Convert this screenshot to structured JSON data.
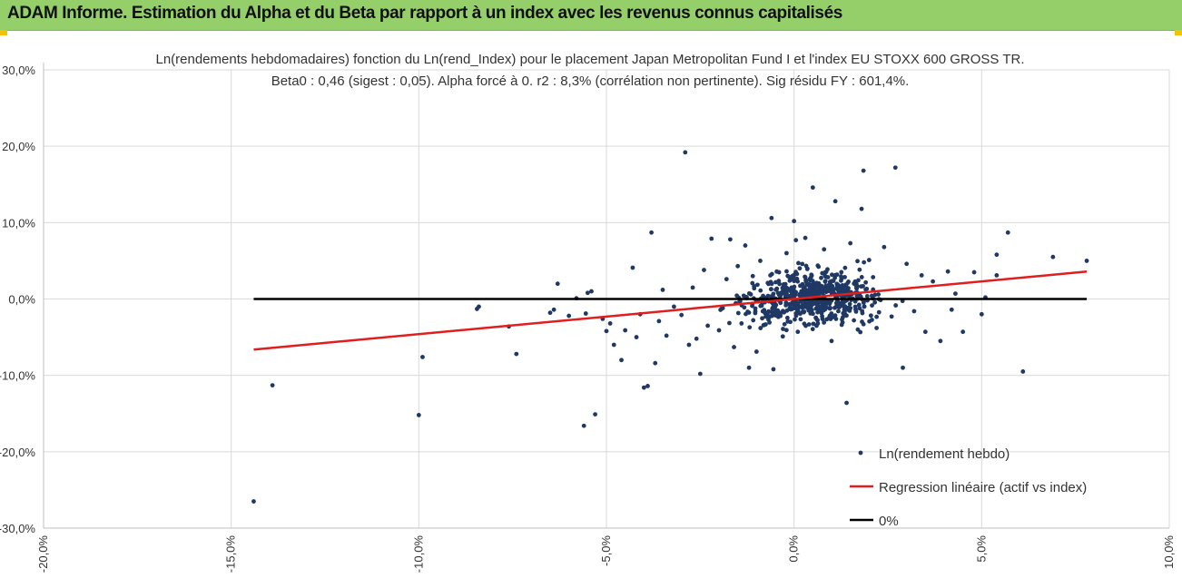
{
  "header": {
    "title": "ADAM Informe. Estimation du Alpha et du Beta par rapport à un index avec les revenus connus capitalisés"
  },
  "colors": {
    "header_bg": "#94cf6a",
    "points": "#1f3864",
    "regression": "#e01e1e",
    "zero": "#000000",
    "corner": "#f2c300"
  },
  "chart_data": {
    "type": "scatter",
    "title_line1": "Ln(rendements hebdomadaires) fonction du Ln(rend_Index) pour le placement Japan Metropolitan Fund I et l'index EU STOXX 600 GROSS TR.",
    "title_line2": "Beta0 : 0,46  (sigest : 0,05).  Alpha forcé à 0. r2 : 8,3% (corrélation non pertinente). Sig résidu FY : 601,4%.",
    "xlabel": "",
    "ylabel": "",
    "xlim": [
      -20,
      10
    ],
    "ylim": [
      -30,
      30
    ],
    "x_ticks": [
      "-20,0%",
      "-15,0%",
      "-10,0%",
      "-5,0%",
      "0,0%",
      "5,0%",
      "10,0%"
    ],
    "x_tick_values": [
      -20,
      -15,
      -10,
      -5,
      0,
      5,
      10
    ],
    "y_ticks": [
      "30,0%",
      "20,0%",
      "10,0%",
      "0,0%",
      "-10,0%",
      "-20,0%",
      "-30,0%"
    ],
    "y_tick_values": [
      30,
      20,
      10,
      0,
      -10,
      -20,
      -30
    ],
    "grid": true,
    "legend_position": "bottom-right",
    "legend": [
      "Ln(rendement hebdo)",
      "Regression linéaire (actif vs index)",
      "0%"
    ],
    "regression": {
      "slope": 0.46,
      "intercept": 0,
      "x_range": [
        -14.4,
        7.8
      ]
    },
    "zero_line": {
      "x_range": [
        -14.4,
        7.8
      ],
      "y": 0
    },
    "series": [
      {
        "name": "Ln(rendement hebdo)",
        "points": [
          [
            -14.4,
            -26.5
          ],
          [
            -13.9,
            -11.3
          ],
          [
            -10.0,
            -15.2
          ],
          [
            -9.9,
            -7.6
          ],
          [
            -8.4,
            -1.0
          ],
          [
            -8.45,
            -1.3
          ],
          [
            -7.6,
            -3.6
          ],
          [
            -7.4,
            -7.2
          ],
          [
            -6.5,
            -1.8
          ],
          [
            -6.4,
            -1.4
          ],
          [
            -6.3,
            2.0
          ],
          [
            -6.0,
            -2.2
          ],
          [
            -5.8,
            0.1
          ],
          [
            -5.6,
            -16.6
          ],
          [
            -5.55,
            -1.9
          ],
          [
            -5.5,
            0.8
          ],
          [
            -5.4,
            1.0
          ],
          [
            -5.3,
            -15.1
          ],
          [
            -5.1,
            -2.6
          ],
          [
            -5.0,
            -4.2
          ],
          [
            -4.9,
            -3.2
          ],
          [
            -4.8,
            -6.0
          ],
          [
            -4.6,
            -8.0
          ],
          [
            -4.5,
            -4.1
          ],
          [
            -4.3,
            4.1
          ],
          [
            -4.2,
            -5.0
          ],
          [
            -4.1,
            -2.0
          ],
          [
            -4.0,
            -11.6
          ],
          [
            -3.9,
            -11.4
          ],
          [
            -3.8,
            8.7
          ],
          [
            -3.7,
            -8.4
          ],
          [
            -3.6,
            -2.9
          ],
          [
            -3.5,
            1.2
          ],
          [
            -3.4,
            -4.8
          ],
          [
            -3.2,
            -1.0
          ],
          [
            -3.0,
            -2.1
          ],
          [
            -2.9,
            19.2
          ],
          [
            -2.8,
            -6.0
          ],
          [
            -2.7,
            1.5
          ],
          [
            -2.6,
            -5.2
          ],
          [
            -2.5,
            -9.8
          ],
          [
            -2.4,
            3.8
          ],
          [
            -2.3,
            -3.5
          ],
          [
            -2.2,
            7.9
          ],
          [
            -2.0,
            -4.1
          ],
          [
            -1.9,
            -1.2
          ],
          [
            -1.8,
            2.6
          ],
          [
            -1.7,
            7.8
          ],
          [
            -1.6,
            -6.3
          ],
          [
            -1.5,
            4.3
          ],
          [
            -1.4,
            -3.2
          ],
          [
            -1.3,
            7.0
          ],
          [
            -1.2,
            -9.0
          ],
          [
            -1.1,
            3.0
          ],
          [
            -1.0,
            -6.9
          ],
          [
            -0.9,
            5.0
          ],
          [
            -0.8,
            -3.4
          ],
          [
            -0.7,
            2.1
          ],
          [
            -0.6,
            10.6
          ],
          [
            -0.55,
            -9.2
          ],
          [
            -0.4,
            3.5
          ],
          [
            -0.3,
            -4.9
          ],
          [
            -0.2,
            6.0
          ],
          [
            -0.1,
            -3.0
          ],
          [
            0.0,
            10.2
          ],
          [
            0.05,
            7.7
          ],
          [
            0.1,
            -4.3
          ],
          [
            0.3,
            8.0
          ],
          [
            0.5,
            14.6
          ],
          [
            0.6,
            -3.5
          ],
          [
            0.8,
            6.5
          ],
          [
            1.0,
            -5.5
          ],
          [
            1.1,
            12.8
          ],
          [
            1.3,
            -2.4
          ],
          [
            1.4,
            -13.6
          ],
          [
            1.5,
            7.3
          ],
          [
            1.7,
            -4.0
          ],
          [
            1.8,
            11.8
          ],
          [
            1.85,
            16.8
          ],
          [
            2.0,
            5.1
          ],
          [
            2.2,
            -3.8
          ],
          [
            2.4,
            6.8
          ],
          [
            2.6,
            -2.3
          ],
          [
            2.7,
            17.2
          ],
          [
            2.9,
            -9.0
          ],
          [
            3.0,
            4.6
          ],
          [
            3.2,
            -1.6
          ],
          [
            3.4,
            3.1
          ],
          [
            3.5,
            -4.3
          ],
          [
            3.7,
            2.3
          ],
          [
            3.9,
            -5.5
          ],
          [
            4.1,
            3.6
          ],
          [
            4.2,
            -1.4
          ],
          [
            4.3,
            0.7
          ],
          [
            4.5,
            -4.3
          ],
          [
            4.8,
            3.5
          ],
          [
            5.0,
            -2.0
          ],
          [
            5.1,
            0.2
          ],
          [
            5.4,
            3.1
          ],
          [
            5.4,
            5.8
          ],
          [
            5.7,
            8.7
          ],
          [
            6.1,
            -9.5
          ],
          [
            6.9,
            5.5
          ],
          [
            7.8,
            5.0
          ]
        ]
      }
    ]
  }
}
